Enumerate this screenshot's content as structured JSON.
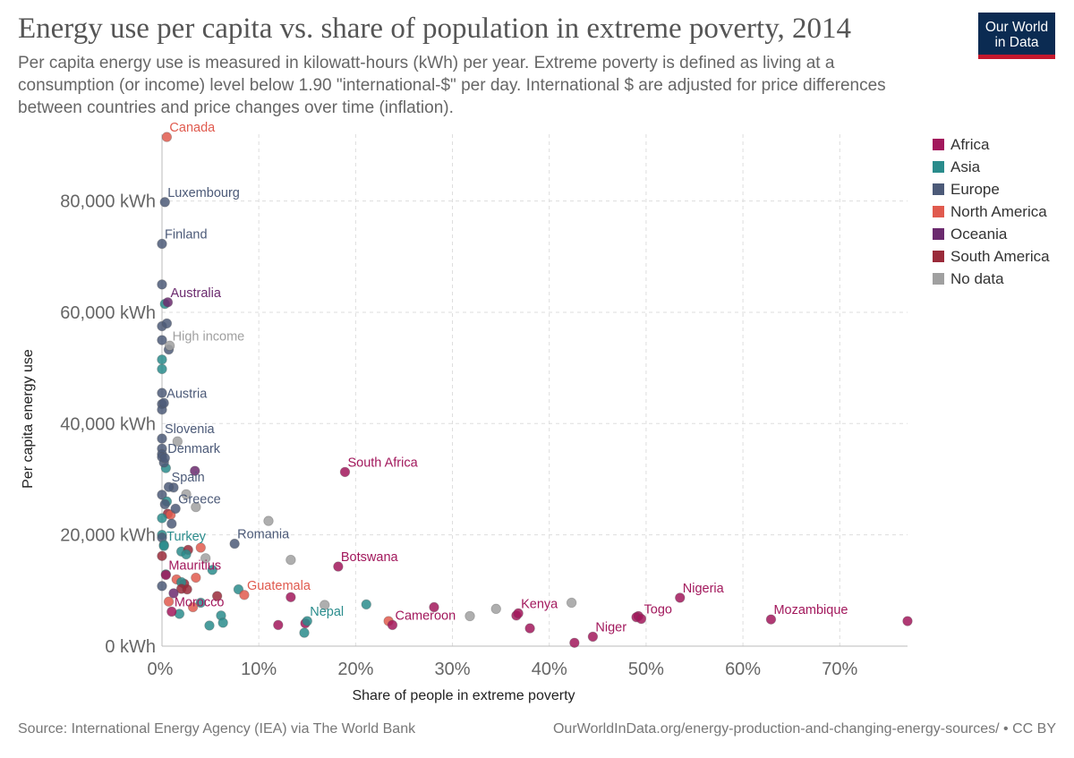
{
  "header": {
    "title": "Energy use per capita vs. share of population in extreme poverty, 2014",
    "subtitle": "Per capita energy use is measured in kilowatt-hours (kWh) per year. Extreme poverty is defined as living at a consumption (or income) level below 1.90 \"international-$\" per day. International $ are adjusted for price differences between countries and price changes over time (inflation).",
    "logo_line1": "Our World",
    "logo_line2": "in Data"
  },
  "footer": {
    "source": "Source: International Energy Agency (IEA) via The World Bank",
    "url": "OurWorldInData.org/energy-production-and-changing-energy-sources/ • CC BY"
  },
  "colors": {
    "Africa": "#a2185c",
    "Asia": "#2a8c8c",
    "Europe": "#4c5a78",
    "North America": "#e05a4e",
    "Oceania": "#6b2a6e",
    "South America": "#9a2a3a",
    "No data": "#a0a0a0"
  },
  "legend": [
    {
      "name": "Africa",
      "color": "#a2185c"
    },
    {
      "name": "Asia",
      "color": "#2a8c8c"
    },
    {
      "name": "Europe",
      "color": "#4c5a78"
    },
    {
      "name": "North America",
      "color": "#e05a4e"
    },
    {
      "name": "Oceania",
      "color": "#6b2a6e"
    },
    {
      "name": "South America",
      "color": "#9a2a3a"
    },
    {
      "name": "No data",
      "color": "#a0a0a0"
    }
  ],
  "chart_data": {
    "type": "scatter",
    "xlabel": "Share of people in extreme poverty",
    "ylabel": "Per capita energy use",
    "xlim": [
      0,
      77
    ],
    "ylim": [
      0,
      92000
    ],
    "x_ticks": [
      0,
      10,
      20,
      30,
      40,
      50,
      60,
      70
    ],
    "x_tick_labels": [
      "0%",
      "10%",
      "20%",
      "30%",
      "40%",
      "50%",
      "60%",
      "70%"
    ],
    "y_ticks": [
      0,
      20000,
      40000,
      60000,
      80000
    ],
    "y_tick_labels": [
      "0 kWh",
      "20,000 kWh",
      "40,000 kWh",
      "60,000 kWh",
      "80,000 kWh"
    ],
    "grid": true,
    "legend_position": "right",
    "points": [
      {
        "label": "Canada",
        "continent": "North America",
        "x": 0.5,
        "y": 91500
      },
      {
        "label": "Luxembourg",
        "continent": "Europe",
        "x": 0.3,
        "y": 79800
      },
      {
        "label": "Finland",
        "continent": "Europe",
        "x": 0.0,
        "y": 72300
      },
      {
        "label": "Australia",
        "continent": "Oceania",
        "x": 0.6,
        "y": 61800
      },
      {
        "label": "High income",
        "continent": "No data",
        "x": 0.8,
        "y": 54000
      },
      {
        "label": "Austria",
        "continent": "Europe",
        "x": 0.2,
        "y": 43700
      },
      {
        "label": "Slovenia",
        "continent": "Europe",
        "x": 0.0,
        "y": 37300
      },
      {
        "label": "Denmark",
        "continent": "Europe",
        "x": 0.3,
        "y": 33800
      },
      {
        "label": "Spain",
        "continent": "Europe",
        "x": 0.7,
        "y": 28600
      },
      {
        "label": "Greece",
        "continent": "Europe",
        "x": 1.4,
        "y": 24700
      },
      {
        "label": "Turkey",
        "continent": "Asia",
        "x": 0.2,
        "y": 18000
      },
      {
        "label": "Romania",
        "continent": "Europe",
        "x": 7.5,
        "y": 18400
      },
      {
        "label": "Mauritius",
        "continent": "Africa",
        "x": 0.4,
        "y": 12800
      },
      {
        "label": "Guatemala",
        "continent": "North America",
        "x": 8.5,
        "y": 9200
      },
      {
        "label": "Morocco",
        "continent": "Africa",
        "x": 1.0,
        "y": 6200
      },
      {
        "label": "Nepal",
        "continent": "Asia",
        "x": 15.0,
        "y": 4500
      },
      {
        "label": "South Africa",
        "continent": "Africa",
        "x": 18.9,
        "y": 31300
      },
      {
        "label": "Botswana",
        "continent": "Africa",
        "x": 18.2,
        "y": 14300
      },
      {
        "label": "Cameroon",
        "continent": "Africa",
        "x": 23.8,
        "y": 3800
      },
      {
        "label": "Kenya",
        "continent": "Africa",
        "x": 36.8,
        "y": 5900
      },
      {
        "label": "Niger",
        "continent": "Africa",
        "x": 44.5,
        "y": 1700
      },
      {
        "label": "Togo",
        "continent": "Africa",
        "x": 49.5,
        "y": 4900
      },
      {
        "label": "Nigeria",
        "continent": "Africa",
        "x": 53.5,
        "y": 8700
      },
      {
        "label": "Mozambique",
        "continent": "Africa",
        "x": 62.9,
        "y": 4800
      },
      {
        "label": "",
        "continent": "Europe",
        "x": 0.0,
        "y": 65000
      },
      {
        "label": "",
        "continent": "Asia",
        "x": 0.3,
        "y": 61500
      },
      {
        "label": "",
        "continent": "Europe",
        "x": 0.0,
        "y": 57500
      },
      {
        "label": "",
        "continent": "Europe",
        "x": 0.5,
        "y": 58000
      },
      {
        "label": "",
        "continent": "Europe",
        "x": 0.0,
        "y": 55000
      },
      {
        "label": "",
        "continent": "Europe",
        "x": 0.7,
        "y": 53300
      },
      {
        "label": "",
        "continent": "Asia",
        "x": 0.0,
        "y": 51500
      },
      {
        "label": "",
        "continent": "Asia",
        "x": 0.0,
        "y": 49800
      },
      {
        "label": "",
        "continent": "Europe",
        "x": 0.0,
        "y": 45500
      },
      {
        "label": "",
        "continent": "Europe",
        "x": 0.0,
        "y": 43500
      },
      {
        "label": "",
        "continent": "Europe",
        "x": 0.0,
        "y": 42500
      },
      {
        "label": "",
        "continent": "No data",
        "x": 1.6,
        "y": 36800
      },
      {
        "label": "",
        "continent": "Europe",
        "x": 0.0,
        "y": 35500
      },
      {
        "label": "",
        "continent": "Europe",
        "x": 0.0,
        "y": 34500
      },
      {
        "label": "",
        "continent": "Europe",
        "x": 0.0,
        "y": 34000
      },
      {
        "label": "",
        "continent": "Asia",
        "x": 0.4,
        "y": 32000
      },
      {
        "label": "",
        "continent": "Oceania",
        "x": 3.4,
        "y": 31500
      },
      {
        "label": "",
        "continent": "Europe",
        "x": 0.2,
        "y": 33000
      },
      {
        "label": "",
        "continent": "Europe",
        "x": 1.2,
        "y": 28500
      },
      {
        "label": "",
        "continent": "Europe",
        "x": 0.0,
        "y": 27200
      },
      {
        "label": "",
        "continent": "No data",
        "x": 2.5,
        "y": 27300
      },
      {
        "label": "",
        "continent": "Asia",
        "x": 0.5,
        "y": 26000
      },
      {
        "label": "",
        "continent": "No data",
        "x": 3.5,
        "y": 25000
      },
      {
        "label": "",
        "continent": "Europe",
        "x": 0.3,
        "y": 25500
      },
      {
        "label": "",
        "continent": "South America",
        "x": 0.6,
        "y": 23800
      },
      {
        "label": "",
        "continent": "North America",
        "x": 0.9,
        "y": 23600
      },
      {
        "label": "",
        "continent": "Asia",
        "x": 0.0,
        "y": 23000
      },
      {
        "label": "",
        "continent": "Europe",
        "x": 1.0,
        "y": 22000
      },
      {
        "label": "",
        "continent": "No data",
        "x": 11.0,
        "y": 22500
      },
      {
        "label": "",
        "continent": "Asia",
        "x": 0.0,
        "y": 20000
      },
      {
        "label": "",
        "continent": "Europe",
        "x": 0.0,
        "y": 19500
      },
      {
        "label": "",
        "continent": "Asia",
        "x": 0.2,
        "y": 18200
      },
      {
        "label": "",
        "continent": "Asia",
        "x": 2.0,
        "y": 17000
      },
      {
        "label": "",
        "continent": "South America",
        "x": 2.7,
        "y": 17300
      },
      {
        "label": "",
        "continent": "North America",
        "x": 4.0,
        "y": 17700
      },
      {
        "label": "",
        "continent": "South America",
        "x": 0.0,
        "y": 16200
      },
      {
        "label": "",
        "continent": "Asia",
        "x": 2.5,
        "y": 16500
      },
      {
        "label": "",
        "continent": "No data",
        "x": 4.5,
        "y": 15800
      },
      {
        "label": "",
        "continent": "No data",
        "x": 13.3,
        "y": 15500
      },
      {
        "label": "",
        "continent": "Asia",
        "x": 5.2,
        "y": 13700
      },
      {
        "label": "",
        "continent": "Asia",
        "x": 0.4,
        "y": 12900
      },
      {
        "label": "",
        "continent": "North America",
        "x": 1.5,
        "y": 12000
      },
      {
        "label": "",
        "continent": "North America",
        "x": 3.5,
        "y": 12300
      },
      {
        "label": "",
        "continent": "South America",
        "x": 2.3,
        "y": 11200
      },
      {
        "label": "",
        "continent": "Asia",
        "x": 2.0,
        "y": 11500
      },
      {
        "label": "",
        "continent": "Europe",
        "x": 0.0,
        "y": 10800
      },
      {
        "label": "",
        "continent": "South America",
        "x": 2.0,
        "y": 10300
      },
      {
        "label": "",
        "continent": "South America",
        "x": 2.6,
        "y": 10200
      },
      {
        "label": "",
        "continent": "Asia",
        "x": 7.9,
        "y": 10200
      },
      {
        "label": "",
        "continent": "Oceania",
        "x": 1.2,
        "y": 9500
      },
      {
        "label": "",
        "continent": "South America",
        "x": 5.7,
        "y": 9000
      },
      {
        "label": "",
        "continent": "Africa",
        "x": 13.3,
        "y": 8800
      },
      {
        "label": "",
        "continent": "North America",
        "x": 0.7,
        "y": 8000
      },
      {
        "label": "",
        "continent": "Asia",
        "x": 4.0,
        "y": 7800
      },
      {
        "label": "",
        "continent": "No data",
        "x": 16.8,
        "y": 7400
      },
      {
        "label": "",
        "continent": "Asia",
        "x": 21.1,
        "y": 7500
      },
      {
        "label": "",
        "continent": "Africa",
        "x": 28.1,
        "y": 7000
      },
      {
        "label": "",
        "continent": "No data",
        "x": 34.5,
        "y": 6700
      },
      {
        "label": "",
        "continent": "No data",
        "x": 42.3,
        "y": 7800
      },
      {
        "label": "",
        "continent": "North America",
        "x": 3.2,
        "y": 7000
      },
      {
        "label": "",
        "continent": "Asia",
        "x": 1.8,
        "y": 5800
      },
      {
        "label": "",
        "continent": "Asia",
        "x": 6.1,
        "y": 5500
      },
      {
        "label": "",
        "continent": "No data",
        "x": 31.8,
        "y": 5400
      },
      {
        "label": "",
        "continent": "Africa",
        "x": 36.6,
        "y": 5500
      },
      {
        "label": "",
        "continent": "Africa",
        "x": 49.2,
        "y": 5400
      },
      {
        "label": "",
        "continent": "Africa",
        "x": 49.0,
        "y": 5200
      },
      {
        "label": "",
        "continent": "Africa",
        "x": 77.0,
        "y": 4500
      },
      {
        "label": "",
        "continent": "North America",
        "x": 23.4,
        "y": 4500
      },
      {
        "label": "",
        "continent": "Asia",
        "x": 6.3,
        "y": 4200
      },
      {
        "label": "",
        "continent": "Africa",
        "x": 14.8,
        "y": 4100
      },
      {
        "label": "",
        "continent": "Asia",
        "x": 4.9,
        "y": 3700
      },
      {
        "label": "",
        "continent": "Africa",
        "x": 12.0,
        "y": 3800
      },
      {
        "label": "",
        "continent": "Africa",
        "x": 38.0,
        "y": 3200
      },
      {
        "label": "",
        "continent": "Asia",
        "x": 14.7,
        "y": 2400
      },
      {
        "label": "",
        "continent": "Africa",
        "x": 42.6,
        "y": 600
      }
    ]
  }
}
